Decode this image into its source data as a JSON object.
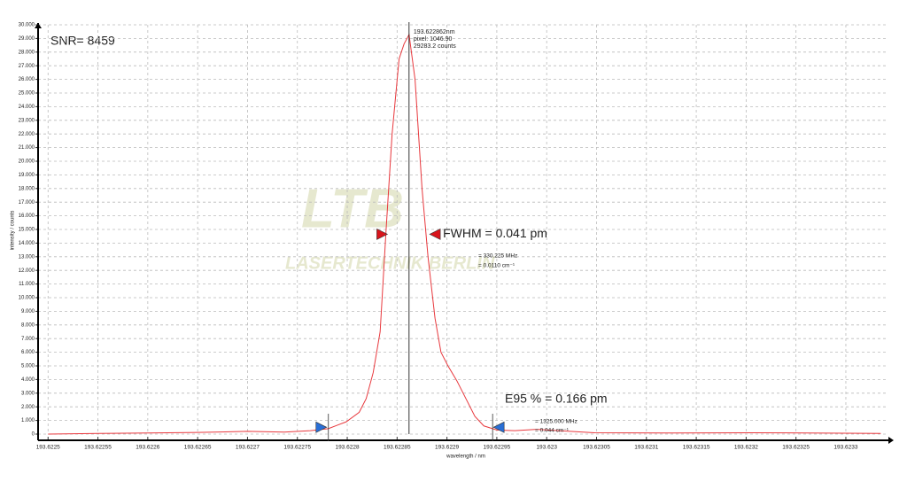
{
  "chart_data": {
    "type": "line",
    "snr": "SNR= 8459",
    "watermark": [
      "LTB",
      "LASERTECHNIK BERLIN"
    ],
    "xlabel": "wavelength / nm",
    "ylabel": "intensity / counts",
    "color": "#e8383d",
    "grid": true,
    "x": [
      193.6225,
      193.62255,
      193.6226,
      193.62265,
      193.6227,
      193.622737,
      193.622763,
      193.622781,
      193.622799,
      193.622812,
      193.622819,
      193.622826,
      193.622833,
      193.622839,
      193.622845,
      193.622852,
      193.622857,
      193.622862,
      193.622868,
      193.622875,
      193.622881,
      193.622888,
      193.622894,
      193.622901,
      193.62291,
      193.622919,
      193.622928,
      193.622937,
      193.62295,
      193.622968,
      193.62299,
      193.623012,
      193.623048,
      193.623119,
      193.623208,
      193.623335
    ],
    "values": [
      0,
      50,
      80,
      120,
      200,
      150,
      250,
      400,
      900,
      1600,
      2600,
      4500,
      7500,
      15000,
      22000,
      27500,
      28600,
      29283.2,
      26000,
      18000,
      13000,
      8500,
      6000,
      5000,
      3900,
      2600,
      1300,
      600,
      300,
      250,
      350,
      250,
      100,
      80,
      100,
      50
    ],
    "xlim": [
      193.62249,
      193.62334
    ],
    "xticks": [
      193.6225,
      193.62255,
      193.6226,
      193.62265,
      193.6227,
      193.62275,
      193.6228,
      193.62285,
      193.6229,
      193.62295,
      193.623,
      193.62305,
      193.6231,
      193.62315,
      193.6232,
      193.62325,
      193.6233
    ],
    "ylim": [
      0,
      30000
    ],
    "yticks": [
      0,
      {
        "value": 1000,
        "label": "1.000"
      },
      {
        "value": 2000,
        "label": "2.000"
      },
      {
        "value": 3000,
        "label": "3.000"
      },
      {
        "value": 4000,
        "label": "4.000"
      },
      {
        "value": 5000,
        "label": "5.000"
      },
      {
        "value": 6000,
        "label": "6.000"
      },
      {
        "value": 7000,
        "label": "7.000"
      },
      {
        "value": 8000,
        "label": "8.000"
      },
      {
        "value": 9000,
        "label": "9.000"
      },
      {
        "value": 10000,
        "label": "10.000"
      },
      {
        "value": 11000,
        "label": "11.000"
      },
      {
        "value": 12000,
        "label": "12.000"
      },
      {
        "value": 13000,
        "label": "13.000"
      },
      {
        "value": 14000,
        "label": "14.000"
      },
      {
        "value": 15000,
        "label": "15.000"
      },
      {
        "value": 16000,
        "label": "16.000"
      },
      {
        "value": 17000,
        "label": "17.000"
      },
      {
        "value": 18000,
        "label": "18.000"
      },
      {
        "value": 19000,
        "label": "19.000"
      },
      {
        "value": 20000,
        "label": "20.000"
      },
      {
        "value": 21000,
        "label": "21.000"
      },
      {
        "value": 22000,
        "label": "22.000"
      },
      {
        "value": 23000,
        "label": "23.000"
      },
      {
        "value": 24000,
        "label": "24.000"
      },
      {
        "value": 25000,
        "label": "25.000"
      },
      {
        "value": 26000,
        "label": "26.000"
      },
      {
        "value": 27000,
        "label": "27.000"
      },
      {
        "value": 28000,
        "label": "28.000"
      },
      {
        "value": 29000,
        "label": "29.000"
      },
      {
        "value": 30000,
        "label": "30.000"
      }
    ],
    "cursor": {
      "x": 193.622862,
      "label": "193.622862nm",
      "pixel": "pixel:  1046.90",
      "counts": "29283.2 counts"
    },
    "fwhm": {
      "label": "FWHM = 0.041 pm",
      "details": [
        "= 330.225 MHz",
        "= 0.0110 cm⁻¹"
      ],
      "x": [
        193.622835,
        193.622888
      ],
      "y": 14650
    },
    "e95": {
      "label": "E95 % = 0.166 pm",
      "details": [
        "= 1325.000 MHz",
        "= 0.044 cm⁻¹"
      ],
      "x": [
        193.622774,
        193.622952
      ],
      "y": 500
    }
  }
}
